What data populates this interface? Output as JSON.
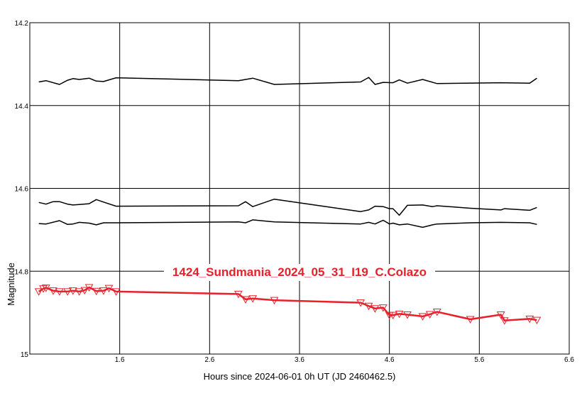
{
  "chart_data": {
    "type": "line",
    "title": "1424_Sundmania_2024_05_31_I19_C.Colazo",
    "title_color": "#e8202a",
    "xlabel": "Hours since 2024-06-01 0h UT (JD 2460462.5)",
    "ylabel": "Magnitude",
    "xlim": [
      0.6,
      6.6
    ],
    "ylim": [
      15.0,
      14.2
    ],
    "y_inverted": true,
    "grid": true,
    "x_ticks": [
      {
        "value": 1.6,
        "label": "1.6"
      },
      {
        "value": 2.6,
        "label": "2.6"
      },
      {
        "value": 3.6,
        "label": "3.6"
      },
      {
        "value": 4.6,
        "label": "4.6"
      },
      {
        "value": 5.6,
        "label": "5.6"
      },
      {
        "value": 6.6,
        "label": "6.6"
      }
    ],
    "x_grid": [
      1.6,
      2.6,
      3.6,
      4.6,
      5.6
    ],
    "y_ticks": [
      {
        "value": 14.2,
        "label": "14.2"
      },
      {
        "value": 14.4,
        "label": "14.4"
      },
      {
        "value": 14.6,
        "label": "14.6"
      },
      {
        "value": 14.8,
        "label": "14.8"
      },
      {
        "value": 15.0,
        "label": "15"
      }
    ],
    "y_grid": [
      14.4,
      14.6,
      14.8
    ],
    "series": [
      {
        "color": "#000000",
        "markers": false,
        "points": [
          [
            0.7,
            14.343
          ],
          [
            0.78,
            14.34
          ],
          [
            0.93,
            14.349
          ],
          [
            1.02,
            14.339
          ],
          [
            1.08,
            14.335
          ],
          [
            1.15,
            14.337
          ],
          [
            1.26,
            14.334
          ],
          [
            1.34,
            14.341
          ],
          [
            1.42,
            14.342
          ],
          [
            1.56,
            14.333
          ],
          [
            2.92,
            14.34
          ],
          [
            3.08,
            14.334
          ],
          [
            3.32,
            14.349
          ],
          [
            4.28,
            14.343
          ],
          [
            4.37,
            14.332
          ],
          [
            4.44,
            14.349
          ],
          [
            4.53,
            14.344
          ],
          [
            4.64,
            14.345
          ],
          [
            4.71,
            14.338
          ],
          [
            4.8,
            14.346
          ],
          [
            4.97,
            14.337
          ],
          [
            5.13,
            14.347
          ],
          [
            5.84,
            14.345
          ],
          [
            6.16,
            14.346
          ],
          [
            6.24,
            14.334
          ]
        ]
      },
      {
        "color": "#000000",
        "markers": false,
        "points": [
          [
            0.7,
            14.634
          ],
          [
            0.78,
            14.638
          ],
          [
            0.86,
            14.632
          ],
          [
            0.93,
            14.632
          ],
          [
            1.02,
            14.638
          ],
          [
            1.08,
            14.64
          ],
          [
            1.15,
            14.639
          ],
          [
            1.26,
            14.637
          ],
          [
            1.34,
            14.627
          ],
          [
            1.42,
            14.633
          ],
          [
            1.56,
            14.643
          ],
          [
            2.92,
            14.642
          ],
          [
            3.0,
            14.632
          ],
          [
            3.08,
            14.644
          ],
          [
            3.32,
            14.626
          ],
          [
            4.28,
            14.656
          ],
          [
            4.37,
            14.652
          ],
          [
            4.44,
            14.643
          ],
          [
            4.53,
            14.644
          ],
          [
            4.6,
            14.649
          ],
          [
            4.64,
            14.649
          ],
          [
            4.71,
            14.665
          ],
          [
            4.8,
            14.641
          ],
          [
            4.97,
            14.64
          ],
          [
            5.08,
            14.644
          ],
          [
            5.13,
            14.642
          ],
          [
            5.5,
            14.648
          ],
          [
            5.84,
            14.652
          ],
          [
            5.88,
            14.649
          ],
          [
            6.16,
            14.653
          ],
          [
            6.24,
            14.646
          ]
        ]
      },
      {
        "color": "#000000",
        "markers": false,
        "points": [
          [
            0.7,
            14.685
          ],
          [
            0.78,
            14.686
          ],
          [
            0.93,
            14.678
          ],
          [
            1.02,
            14.687
          ],
          [
            1.08,
            14.686
          ],
          [
            1.15,
            14.682
          ],
          [
            1.26,
            14.684
          ],
          [
            1.34,
            14.688
          ],
          [
            1.42,
            14.683
          ],
          [
            1.56,
            14.683
          ],
          [
            2.92,
            14.681
          ],
          [
            3.0,
            14.683
          ],
          [
            3.08,
            14.676
          ],
          [
            3.32,
            14.681
          ],
          [
            4.28,
            14.686
          ],
          [
            4.37,
            14.682
          ],
          [
            4.44,
            14.686
          ],
          [
            4.53,
            14.677
          ],
          [
            4.6,
            14.686
          ],
          [
            4.64,
            14.684
          ],
          [
            4.71,
            14.688
          ],
          [
            4.8,
            14.686
          ],
          [
            4.97,
            14.694
          ],
          [
            5.08,
            14.688
          ],
          [
            5.13,
            14.686
          ],
          [
            5.5,
            14.683
          ],
          [
            5.84,
            14.682
          ],
          [
            6.16,
            14.683
          ],
          [
            6.24,
            14.687
          ]
        ]
      },
      {
        "color": "#e8202a",
        "markers": true,
        "marker": "triangle-down",
        "points": [
          [
            0.7,
            14.849
          ],
          [
            0.75,
            14.842
          ],
          [
            0.78,
            14.84
          ],
          [
            0.86,
            14.847
          ],
          [
            0.93,
            14.849
          ],
          [
            1.02,
            14.849
          ],
          [
            1.08,
            14.847
          ],
          [
            1.15,
            14.849
          ],
          [
            1.21,
            14.846
          ],
          [
            1.26,
            14.839
          ],
          [
            1.34,
            14.848
          ],
          [
            1.42,
            14.847
          ],
          [
            1.48,
            14.841
          ],
          [
            1.56,
            14.849
          ],
          [
            2.92,
            14.855
          ],
          [
            3.0,
            14.868
          ],
          [
            3.08,
            14.866
          ],
          [
            3.32,
            14.87
          ],
          [
            4.28,
            14.876
          ],
          [
            4.37,
            14.884
          ],
          [
            4.44,
            14.89
          ],
          [
            4.53,
            14.888
          ],
          [
            4.6,
            14.906
          ],
          [
            4.64,
            14.906
          ],
          [
            4.71,
            14.903
          ],
          [
            4.8,
            14.905
          ],
          [
            4.97,
            14.909
          ],
          [
            5.05,
            14.904
          ],
          [
            5.13,
            14.898
          ],
          [
            5.5,
            14.916
          ],
          [
            5.84,
            14.905
          ],
          [
            5.88,
            14.919
          ],
          [
            6.16,
            14.915
          ],
          [
            6.24,
            14.918
          ]
        ]
      }
    ]
  }
}
